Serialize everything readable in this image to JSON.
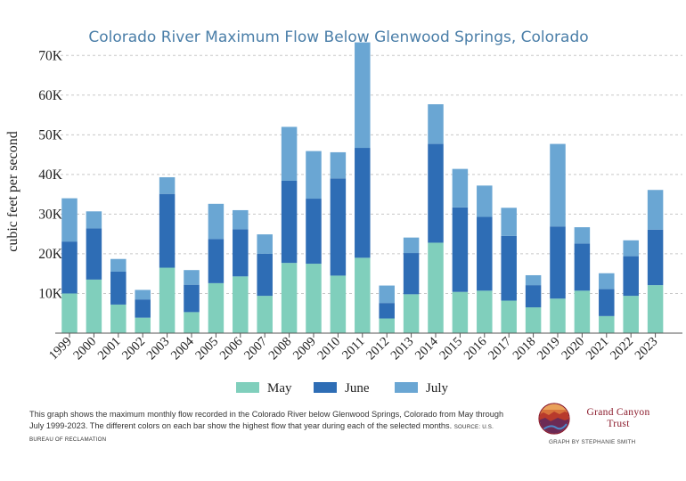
{
  "chart_data": {
    "type": "bar",
    "stacked": true,
    "title": "Colorado River Maximum Flow Below Glenwood Springs, Colorado",
    "ylabel": "cubic feet per second",
    "xlabel": "",
    "ylim": [
      0,
      75000
    ],
    "yticks": [
      10000,
      20000,
      30000,
      40000,
      50000,
      60000,
      70000
    ],
    "ytick_labels": [
      "10K",
      "20K",
      "30K",
      "40K",
      "50K",
      "60K",
      "70K"
    ],
    "grid": "horizontal dashed",
    "legend_position": "bottom",
    "categories": [
      "1999",
      "2000",
      "2001",
      "2002",
      "2003",
      "2004",
      "2005",
      "2006",
      "2007",
      "2008",
      "2009",
      "2010",
      "2011",
      "2012",
      "2013",
      "2014",
      "2015",
      "2016",
      "2017",
      "2018",
      "2019",
      "2020",
      "2021",
      "2022",
      "2023"
    ],
    "series": [
      {
        "name": "May",
        "color": "#80cfbc",
        "values": [
          10000,
          13500,
          7200,
          3900,
          16500,
          5300,
          12600,
          14300,
          9400,
          17700,
          17500,
          14500,
          19000,
          3700,
          9800,
          22800,
          10400,
          10700,
          8200,
          6500,
          8700,
          10700,
          4300,
          9400,
          12100
        ]
      },
      {
        "name": "June",
        "color": "#2e6db5",
        "values": [
          13100,
          12900,
          8300,
          4600,
          18600,
          6900,
          11100,
          11900,
          10600,
          20700,
          16400,
          24500,
          27700,
          3900,
          10400,
          24900,
          21300,
          18600,
          16300,
          5600,
          18200,
          11900,
          6800,
          10000,
          14000
        ]
      },
      {
        "name": "July",
        "color": "#6aa6d3",
        "values": [
          10900,
          4300,
          3200,
          2400,
          4200,
          3700,
          8900,
          4800,
          4900,
          13600,
          12000,
          6600,
          26600,
          4400,
          3900,
          10000,
          9700,
          7900,
          7100,
          2500,
          20800,
          4100,
          4000,
          4000,
          10000
        ]
      }
    ]
  },
  "caption": {
    "text": "This graph shows the maximum monthly flow recorded in the Colorado River below Glenwood Springs, Colorado from May through July 1999-2023. The different colors on each bar show the highest flow that year during each of the selected months.",
    "source": "SOURCE: U.S. BUREAU OF RECLAMATION"
  },
  "branding": {
    "logo_line1": "Grand Canyon",
    "logo_line2": "Trust",
    "credit": "GRAPH BY STEPHANIE SMITH"
  }
}
